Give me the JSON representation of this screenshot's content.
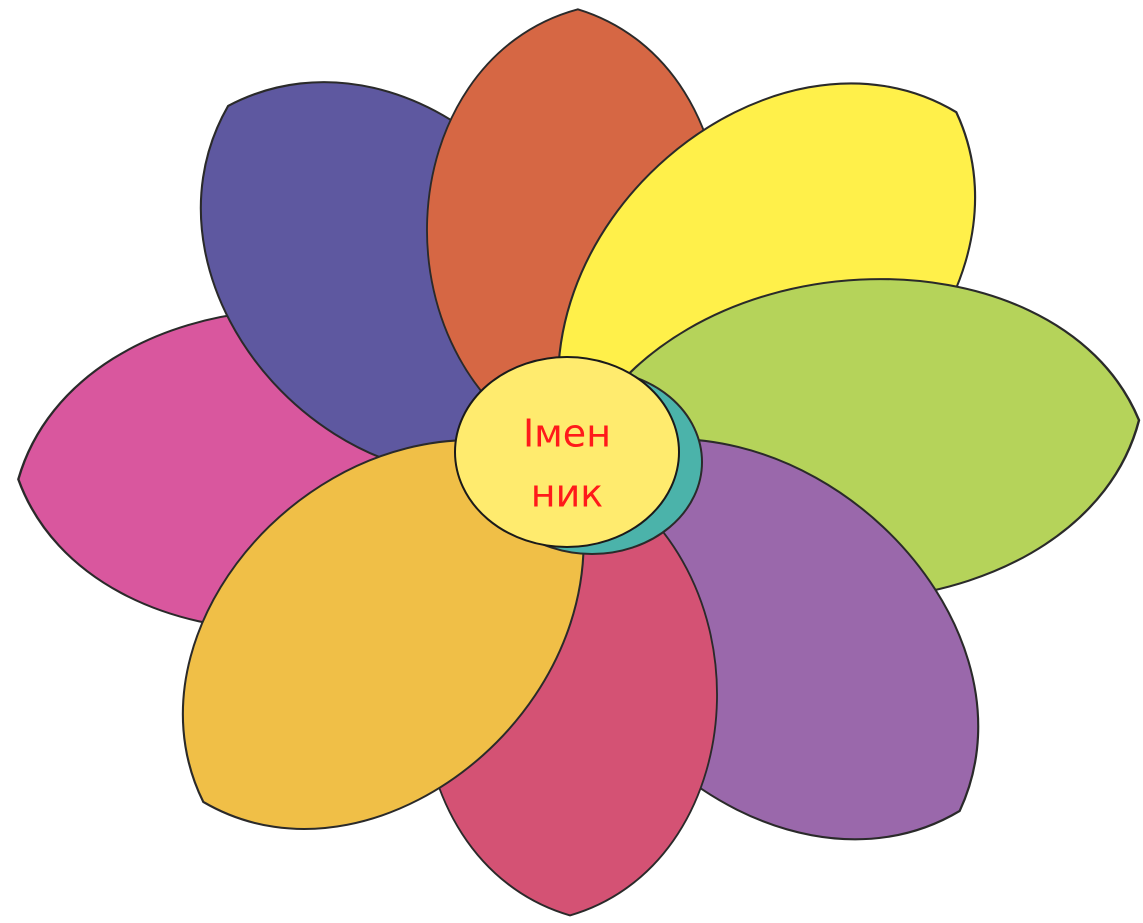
{
  "center": {
    "lines": [
      "Імен",
      "ник"
    ]
  }
}
